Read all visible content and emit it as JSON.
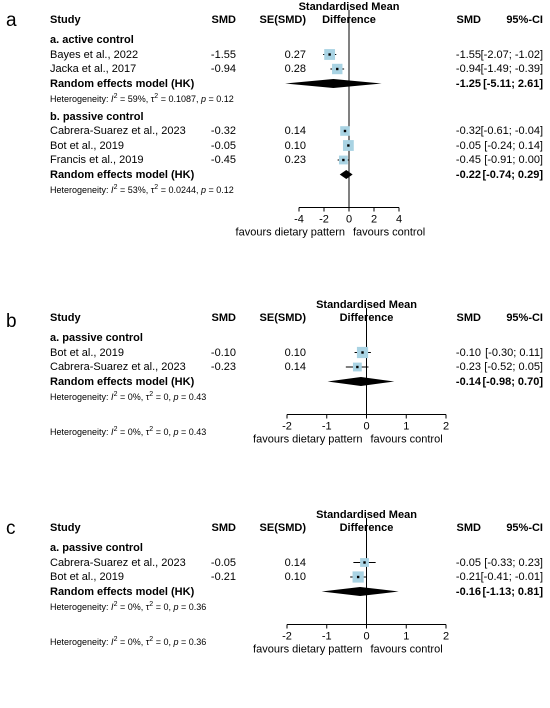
{
  "headers": {
    "study": "Study",
    "smd": "SMD",
    "se": "SE(SMD)",
    "plot_title_line1": "Standardised Mean",
    "plot_title_line2": "Difference",
    "smd_right": "SMD",
    "ci": "95%-CI"
  },
  "axis_labels": {
    "left": "favours dietary pattern",
    "right": "favours control"
  },
  "chart_data": [
    {
      "type": "forest",
      "panel_label": "a",
      "xlim": [
        -4,
        4
      ],
      "ticks": [
        "-4",
        "-2",
        "0",
        "2",
        "4"
      ],
      "tick_values": [
        -4,
        -2,
        0,
        2,
        4
      ],
      "groups": [
        {
          "label": "a. active control",
          "studies": [
            {
              "study": "Bayes et al., 2022",
              "smd": "-1.55",
              "se": "0.27",
              "smd_right": "-1.55",
              "ci": "[-2.07; -1.02]",
              "est": -1.55,
              "lo": -2.07,
              "hi": -1.02,
              "weight": 0.6
            },
            {
              "study": "Jacka et al., 2017",
              "smd": "-0.94",
              "se": "0.28",
              "smd_right": "-0.94",
              "ci": "[-1.49; -0.39]",
              "est": -0.94,
              "lo": -1.49,
              "hi": -0.39,
              "weight": 0.55
            }
          ],
          "pooled": {
            "label": "Random effects model (HK)",
            "smd_right": "-1.25",
            "ci": "[-5.11;  2.61]",
            "est": -1.25,
            "lo": -5.11,
            "hi": 2.61
          },
          "heterogeneity": {
            "prefix": "Heterogeneity: ",
            "i2": "59%",
            "tau2": "0.1087",
            "p": "0.12"
          }
        },
        {
          "label": "b. passive control",
          "studies": [
            {
              "study": "Cabrera-Suarez et al., 2023",
              "smd": "-0.32",
              "se": "0.14",
              "smd_right": "-0.32",
              "ci": "[-0.61; -0.04]",
              "est": -0.32,
              "lo": -0.61,
              "hi": -0.04,
              "weight": 0.45
            },
            {
              "study": "Bot et al., 2019",
              "smd": "-0.05",
              "se": "0.10",
              "smd_right": "-0.05",
              "ci": "[-0.24;  0.14]",
              "est": -0.05,
              "lo": -0.24,
              "hi": 0.14,
              "weight": 0.6
            },
            {
              "study": "Francis et al., 2019",
              "smd": "-0.45",
              "se": "0.23",
              "smd_right": "-0.45",
              "ci": "[-0.91;  0.00]",
              "est": -0.45,
              "lo": -0.91,
              "hi": 0.0,
              "weight": 0.35
            }
          ],
          "pooled": {
            "label": "Random effects model (HK)",
            "smd_right": "-0.22",
            "ci": "[-0.74;  0.29]",
            "est": -0.22,
            "lo": -0.74,
            "hi": 0.29
          },
          "heterogeneity": {
            "prefix": "Heterogeneity: ",
            "i2": "53%",
            "tau2": "0.0244",
            "p": "0.12"
          }
        }
      ],
      "overall_heterogeneity": null
    },
    {
      "type": "forest",
      "panel_label": "b",
      "xlim": [
        -2,
        2
      ],
      "ticks": [
        "-2",
        "-1",
        "0",
        "1",
        "2"
      ],
      "tick_values": [
        -2,
        -1,
        0,
        1,
        2
      ],
      "groups": [
        {
          "label": "a. passive control",
          "studies": [
            {
              "study": "Bot et al., 2019",
              "smd": "-0.10",
              "se": "0.10",
              "smd_right": "-0.10",
              "ci": "[-0.30;  0.11]",
              "est": -0.1,
              "lo": -0.3,
              "hi": 0.11,
              "weight": 0.65
            },
            {
              "study": "Cabrera-Suarez et al., 2023",
              "smd": "-0.23",
              "se": "0.14",
              "smd_right": "-0.23",
              "ci": "[-0.52;  0.05]",
              "est": -0.23,
              "lo": -0.52,
              "hi": 0.05,
              "weight": 0.35
            }
          ],
          "pooled": {
            "label": "Random effects model (HK)",
            "smd_right": "-0.14",
            "ci": "[-0.98;  0.70]",
            "est": -0.14,
            "lo": -0.98,
            "hi": 0.7
          },
          "heterogeneity": {
            "prefix": "Heterogeneity: ",
            "i2": "0%",
            "tau2": "0",
            "p": "0.43"
          }
        }
      ],
      "overall_heterogeneity": {
        "prefix": "Heterogeneity: ",
        "i2": "0%",
        "tau2": "0",
        "p": "0.43"
      }
    },
    {
      "type": "forest",
      "panel_label": "c",
      "xlim": [
        -2,
        2
      ],
      "ticks": [
        "-2",
        "-1",
        "0",
        "1",
        "2"
      ],
      "tick_values": [
        -2,
        -1,
        0,
        1,
        2
      ],
      "groups": [
        {
          "label": "a. passive control",
          "studies": [
            {
              "study": "Cabrera-Suarez et al., 2023",
              "smd": "-0.05",
              "se": "0.14",
              "smd_right": "-0.05",
              "ci": "[-0.33;  0.23]",
              "est": -0.05,
              "lo": -0.33,
              "hi": 0.23,
              "weight": 0.35
            },
            {
              "study": "Bot et al., 2019",
              "smd": "-0.21",
              "se": "0.10",
              "smd_right": "-0.21",
              "ci": "[-0.41; -0.01]",
              "est": -0.21,
              "lo": -0.41,
              "hi": -0.01,
              "weight": 0.65
            }
          ],
          "pooled": {
            "label": "Random effects model (HK)",
            "smd_right": "-0.16",
            "ci": "[-1.13;  0.81]",
            "est": -0.16,
            "lo": -1.13,
            "hi": 0.81
          },
          "heterogeneity": {
            "prefix": "Heterogeneity: ",
            "i2": "0%",
            "tau2": "0",
            "p": "0.36"
          }
        }
      ],
      "overall_heterogeneity": {
        "prefix": "Heterogeneity: ",
        "i2": "0%",
        "tau2": "0",
        "p": "0.36"
      }
    }
  ],
  "colors": {
    "box": "#a9d3e3",
    "ink": "#000000"
  }
}
